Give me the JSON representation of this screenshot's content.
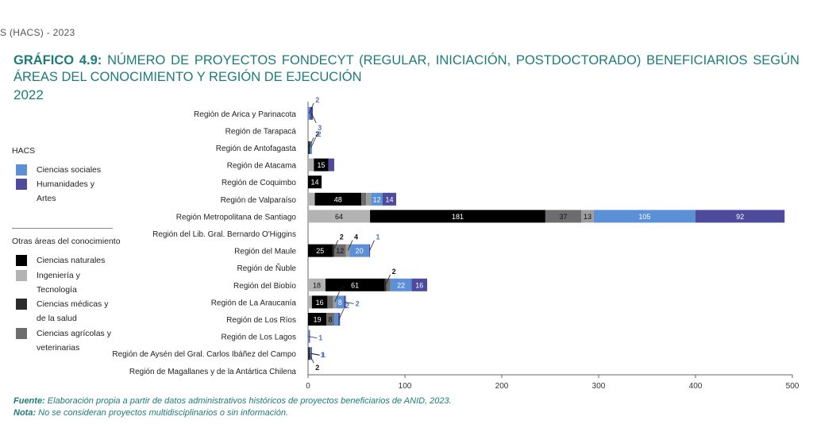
{
  "header": "S (HACS) - 2023",
  "title": {
    "lead": "GRÁFICO 4.9:",
    "text": "NÚMERO DE PROYECTOS FONDECYT (REGULAR, INICIACIÓN, POSTDOCTORADO) BENEFICIARIOS SEGÚN ÁREAS DEL CONOCIMIENTO Y REGIÓN DE EJECUCIÓN",
    "year": "2022"
  },
  "legend": {
    "hacs_title": "HACS",
    "hacs_items": [
      {
        "label": "Ciencias sociales",
        "color": "#5b8fd6"
      },
      {
        "label": "Humanidades y Artes",
        "color": "#4e4a9c"
      }
    ],
    "other_title": "Otras áreas del conocimiento",
    "other_items": [
      {
        "label": "Ciencias naturales",
        "color": "#000000"
      },
      {
        "label": "Ingeniería y Tecnología",
        "color": "#b3b3b3"
      },
      {
        "label": "Ciencias médicas y de la salud",
        "color": "#2b2b2b"
      },
      {
        "label": "Ciencias agrícolas y veterinarias",
        "color": "#6d6d70"
      }
    ]
  },
  "chart_data": {
    "type": "bar",
    "orientation": "horizontal",
    "stacked": true,
    "xlim": [
      0,
      500
    ],
    "xticks": [
      "0",
      "100",
      "200",
      "300",
      "400",
      "500"
    ],
    "categories": [
      "Región de Arica y Parinacota",
      "Región de Tarapacá",
      "Región de Antofagasta",
      "Región de Atacama",
      "Región de Coquimbo",
      "Región de Valparaíso",
      "Región Metropolitana de Santiago",
      "Región del Lib. Gral. Bernardo O'Higgins",
      "Región del Maule",
      "Región de Ñuble",
      "Región del Biobío",
      "Región de La Araucanía",
      "Región de Los Ríos",
      "Región de Los Lagos",
      "Región de Aysén del Gral. Carlos Ibáñez del Campo",
      "Región de Magallanes y de la Antártica Chilena"
    ],
    "series": [
      {
        "name": "Ingeniería y Tecnología",
        "color": "#b3b3b3",
        "values": [
          null,
          null,
          null,
          6,
          null,
          7,
          64,
          null,
          null,
          null,
          18,
          4,
          null,
          null,
          null,
          null
        ]
      },
      {
        "name": "Ciencias naturales",
        "color": "#000000",
        "values": [
          null,
          null,
          null,
          15,
          14,
          48,
          181,
          null,
          25,
          null,
          61,
          16,
          19,
          null,
          null,
          null
        ]
      },
      {
        "name": "Ciencias médicas y de la salud",
        "color": "#2b2b2b",
        "values": [
          null,
          null,
          2,
          null,
          null,
          null,
          null,
          null,
          2,
          null,
          2,
          null,
          null,
          null,
          2,
          null
        ]
      },
      {
        "name": "Ciencias agrícolas y veterinarias",
        "color": "#6d6d70",
        "values": [
          null,
          null,
          null,
          null,
          null,
          5,
          37,
          null,
          12,
          null,
          4,
          6,
          8,
          null,
          null,
          null
        ]
      },
      {
        "name": "Ingeniería y Tecnología (2)",
        "color": "#9d9d9d",
        "values": [
          null,
          null,
          null,
          null,
          null,
          5,
          13,
          null,
          4,
          null,
          null,
          3,
          null,
          null,
          null,
          null
        ]
      },
      {
        "name": "Ciencias sociales",
        "color": "#5b8fd6",
        "values": [
          2,
          null,
          2,
          null,
          null,
          12,
          105,
          null,
          20,
          null,
          22,
          8,
          4,
          1,
          1,
          null
        ]
      },
      {
        "name": "Humanidades y Artes",
        "color": "#4e4a9c",
        "values": [
          3,
          null,
          null,
          6,
          null,
          14,
          92,
          null,
          1,
          null,
          16,
          2,
          2,
          1,
          1,
          null
        ]
      }
    ],
    "annotations": [
      {
        "category": 0,
        "series": "Ciencias sociales",
        "text": "2",
        "pos": "above"
      },
      {
        "category": 0,
        "series": "Humanidades y Artes",
        "text": "3",
        "pos": "below"
      },
      {
        "category": 2,
        "series": "Ciencias médicas y de la salud",
        "text": "2",
        "pos": "above"
      },
      {
        "category": 2,
        "series": "Ciencias sociales",
        "text": "2",
        "pos": "above"
      },
      {
        "category": 8,
        "series": "Ciencias médicas y de la salud",
        "text": "2",
        "pos": "above"
      },
      {
        "category": 8,
        "series": "Ingeniería y Tecnología (2)",
        "text": "4",
        "pos": "above"
      },
      {
        "category": 8,
        "series": "Humanidades y Artes",
        "text": "1",
        "pos": "above"
      },
      {
        "category": 10,
        "series": "Ciencias médicas y de la salud",
        "text": "2",
        "pos": "above"
      },
      {
        "category": 11,
        "series": "Ingeniería y Tecnología (2)",
        "text": "3",
        "pos": "above"
      },
      {
        "category": 11,
        "series": "Humanidades y Artes",
        "text": "2",
        "pos": "right"
      },
      {
        "category": 12,
        "series": "Humanidades y Artes",
        "text": "2",
        "pos": "above"
      },
      {
        "category": 13,
        "series": "Ciencias sociales",
        "text": "1",
        "pos": "right"
      },
      {
        "category": 14,
        "series": "Ciencias sociales",
        "text": "1",
        "pos": "right"
      },
      {
        "category": 14,
        "series": "Humanidades y Artes",
        "text": "1",
        "pos": "right"
      },
      {
        "category": 14,
        "series": "Ciencias médicas y de la salud",
        "text": "2",
        "pos": "below"
      }
    ]
  },
  "footer": {
    "source_label": "Fuente:",
    "source_text": "Elaboración propia a partir de datos administrativos históricos de proyectos beneficiarios de ANID, 2023.",
    "note_label": "Nota:",
    "note_text": "No se consideran proyectos multidisciplinarios o sin información."
  }
}
